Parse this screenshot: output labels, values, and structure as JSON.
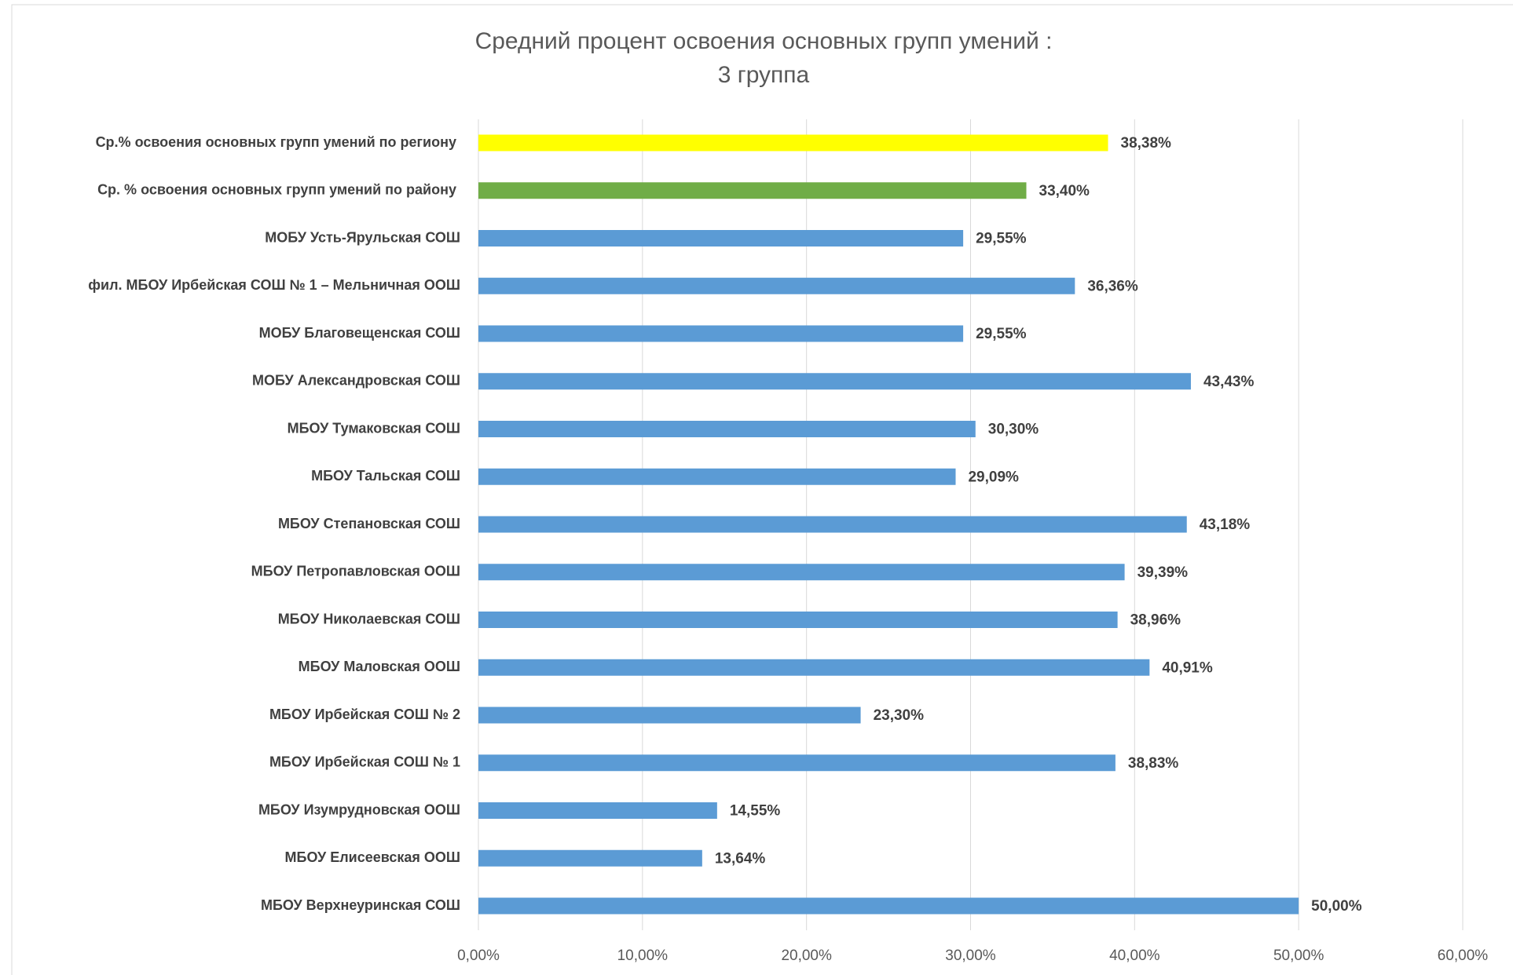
{
  "chart_data": {
    "type": "hbar",
    "title": [
      "Средний процент освоения основных групп умений :",
      "3 группа"
    ],
    "categories": [
      "Ср.% освоения основных групп умений по региону",
      "Ср. % освоения основных групп умений по району",
      "МОБУ Усть-Ярульская СОШ",
      "фил. МБОУ Ирбейская СОШ № 1 – Мельничная ООШ",
      "МОБУ Благовещенская СОШ",
      "МОБУ Александровская СОШ",
      "МБОУ Тумаковская СОШ",
      "МБОУ Тальская СОШ",
      "МБОУ Степановская СОШ",
      "МБОУ Петропавловская ООШ",
      "МБОУ Николаевская СОШ",
      "МБОУ Маловская ООШ",
      "МБОУ Ирбейская СОШ № 2",
      "МБОУ Ирбейская СОШ № 1",
      "МБОУ Изумрудновская ООШ",
      "МБОУ Елисеевская ООШ",
      "МБОУ Верхнеуринская СОШ"
    ],
    "values": [
      38.38,
      33.4,
      29.55,
      36.36,
      29.55,
      43.43,
      30.3,
      29.09,
      43.18,
      39.39,
      38.96,
      40.91,
      23.3,
      38.83,
      14.55,
      13.64,
      50.0
    ],
    "value_labels": [
      "38,38%",
      "33,40%",
      "29,55%",
      "36,36%",
      "29,55%",
      "43,43%",
      "30,30%",
      "29,09%",
      "43,18%",
      "39,39%",
      "38,96%",
      "40,91%",
      "23,30%",
      "38,83%",
      "14,55%",
      "13,64%",
      "50,00%"
    ],
    "colors": [
      "#ffff00",
      "#70ad47",
      "#5b9bd5",
      "#5b9bd5",
      "#5b9bd5",
      "#5b9bd5",
      "#5b9bd5",
      "#5b9bd5",
      "#5b9bd5",
      "#5b9bd5",
      "#5b9bd5",
      "#5b9bd5",
      "#5b9bd5",
      "#5b9bd5",
      "#5b9bd5",
      "#5b9bd5",
      "#5b9bd5"
    ],
    "xlim": [
      0,
      60
    ],
    "xticks": [
      {
        "value": 0,
        "label": "0,00%"
      },
      {
        "value": 10,
        "label": "10,00%"
      },
      {
        "value": 20,
        "label": "20,00%"
      },
      {
        "value": 30,
        "label": "30,00%"
      },
      {
        "value": 40,
        "label": "40,00%"
      },
      {
        "value": 50,
        "label": "50,00%"
      },
      {
        "value": 60,
        "label": "60,00%"
      }
    ],
    "grid": true
  }
}
